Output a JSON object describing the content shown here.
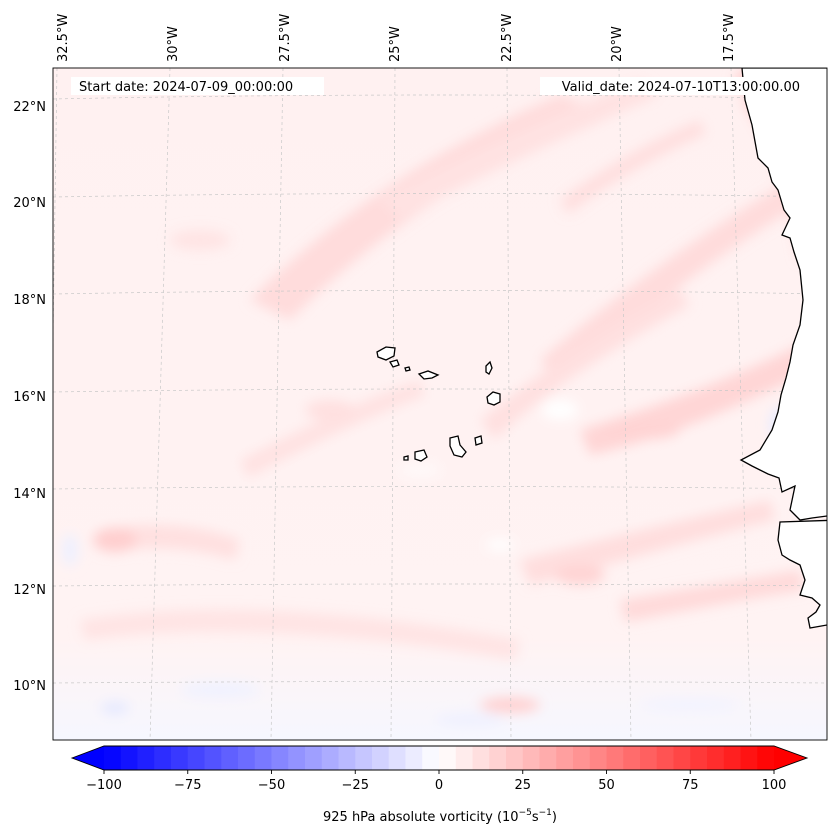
{
  "map": {
    "start_label": "Start date: 2024-07-09_00:00:00",
    "valid_label": "Valid_date: 2024-07-10T13:00:00.00",
    "lon_ticks": [
      {
        "label": "32.5°W",
        "value": -32.5
      },
      {
        "label": "30°W",
        "value": -30
      },
      {
        "label": "27.5°W",
        "value": -27.5
      },
      {
        "label": "25°W",
        "value": -25
      },
      {
        "label": "22.5°W",
        "value": -22.5
      },
      {
        "label": "20°W",
        "value": -20
      },
      {
        "label": "17.5°W",
        "value": -17.5
      }
    ],
    "lat_ticks": [
      {
        "label": "22°N",
        "value": 22
      },
      {
        "label": "20°N",
        "value": 20
      },
      {
        "label": "18°N",
        "value": 18
      },
      {
        "label": "16°N",
        "value": 16
      },
      {
        "label": "14°N",
        "value": 14
      },
      {
        "label": "12°N",
        "value": 12
      },
      {
        "label": "10°N",
        "value": 10
      }
    ],
    "gridlines": true,
    "coastlines": true,
    "islands": "Cape Verde"
  },
  "colorbar": {
    "label_prefix": "925 hPa absolute vorticity (10",
    "label_exp1": "−5",
    "label_mid": "s",
    "label_exp2": "−1",
    "label_suffix": ")",
    "min": -100,
    "max": 100,
    "cmap": "bwr",
    "extend": "both",
    "ticks": [
      {
        "label": "−100",
        "value": -100
      },
      {
        "label": "−75",
        "value": -75
      },
      {
        "label": "−50",
        "value": -50
      },
      {
        "label": "−25",
        "value": -25
      },
      {
        "label": "0",
        "value": 0
      },
      {
        "label": "25",
        "value": 25
      },
      {
        "label": "50",
        "value": 50
      },
      {
        "label": "75",
        "value": 75
      },
      {
        "label": "100",
        "value": 100
      }
    ],
    "neg_color": "#0000ff",
    "zero_color": "#ffffff",
    "pos_color": "#ff0000"
  }
}
